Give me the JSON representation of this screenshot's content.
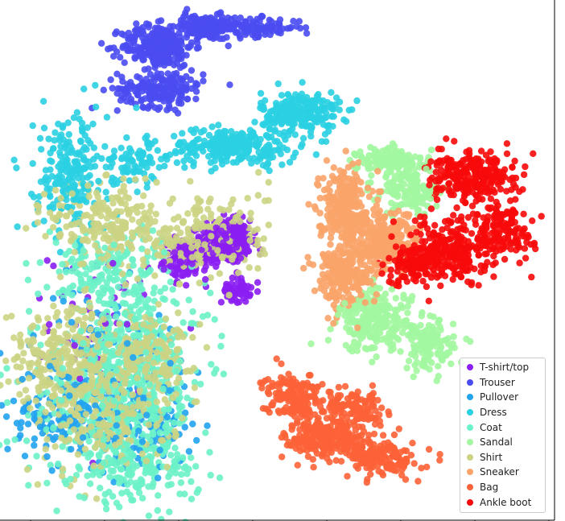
{
  "chart_data": {
    "type": "scatter",
    "title": "",
    "xlabel": "",
    "ylabel": "",
    "grid": false,
    "legend_placement": "lower-right",
    "series": [
      {
        "name": "T-shirt/top",
        "color": "#8b1ef2",
        "clusters": [
          {
            "x": 0.03,
            "y": 0.66,
            "sx": 0.035,
            "sy": 0.035,
            "n": 420
          },
          {
            "x": -0.08,
            "y": 0.6,
            "sx": 0.03,
            "sy": 0.03,
            "n": 120
          },
          {
            "x": 0.06,
            "y": 0.5,
            "sx": 0.02,
            "sy": 0.02,
            "n": 60
          },
          {
            "x": -0.3,
            "y": 0.4,
            "sx": 0.08,
            "sy": 0.12,
            "n": 60
          }
        ]
      },
      {
        "name": "Trouser",
        "color": "#4a4cf2",
        "clusters": [
          {
            "x": -0.03,
            "y": 1.36,
            "sx": 0.05,
            "sy": 0.02,
            "n": 180
          },
          {
            "x": -0.16,
            "y": 1.3,
            "sx": 0.05,
            "sy": 0.035,
            "n": 260
          },
          {
            "x": -0.15,
            "y": 1.16,
            "sx": 0.06,
            "sy": 0.03,
            "n": 200
          },
          {
            "x": 0.12,
            "y": 1.36,
            "sx": 0.06,
            "sy": 0.015,
            "n": 100
          }
        ]
      },
      {
        "name": "Pullover",
        "color": "#22a3f0",
        "clusters": [
          {
            "x": -0.42,
            "y": 0.1,
            "sx": 0.08,
            "sy": 0.08,
            "n": 160
          },
          {
            "x": -0.2,
            "y": 0.06,
            "sx": 0.07,
            "sy": 0.07,
            "n": 130
          },
          {
            "x": -0.3,
            "y": 0.32,
            "sx": 0.1,
            "sy": 0.1,
            "n": 90
          }
        ]
      },
      {
        "name": "Dress",
        "color": "#2ad0e2",
        "clusters": [
          {
            "x": 0.24,
            "y": 1.08,
            "sx": 0.055,
            "sy": 0.035,
            "n": 240
          },
          {
            "x": 0.05,
            "y": 0.97,
            "sx": 0.09,
            "sy": 0.03,
            "n": 240
          },
          {
            "x": -0.4,
            "y": 0.88,
            "sx": 0.05,
            "sy": 0.1,
            "n": 220
          },
          {
            "x": -0.22,
            "y": 0.92,
            "sx": 0.05,
            "sy": 0.04,
            "n": 80
          }
        ]
      },
      {
        "name": "Coat",
        "color": "#6cf2c8",
        "clusters": [
          {
            "x": -0.22,
            "y": 0.3,
            "sx": 0.1,
            "sy": 0.1,
            "n": 260
          },
          {
            "x": -0.28,
            "y": 0.12,
            "sx": 0.12,
            "sy": 0.11,
            "n": 320
          },
          {
            "x": -0.22,
            "y": -0.08,
            "sx": 0.09,
            "sy": 0.06,
            "n": 180
          },
          {
            "x": -0.3,
            "y": 0.56,
            "sx": 0.09,
            "sy": 0.08,
            "n": 180
          }
        ]
      },
      {
        "name": "Sandal",
        "color": "#a2f7a0",
        "clusters": [
          {
            "x": 0.5,
            "y": 0.92,
            "sx": 0.05,
            "sy": 0.025,
            "n": 140
          },
          {
            "x": 0.45,
            "y": 0.4,
            "sx": 0.05,
            "sy": 0.05,
            "n": 240
          },
          {
            "x": 0.6,
            "y": 0.32,
            "sx": 0.035,
            "sy": 0.04,
            "n": 130
          },
          {
            "x": 0.55,
            "y": 0.82,
            "sx": 0.04,
            "sy": 0.035,
            "n": 120
          }
        ]
      },
      {
        "name": "Shirt",
        "color": "#ccd484",
        "clusters": [
          {
            "x": -0.42,
            "y": 0.3,
            "sx": 0.08,
            "sy": 0.08,
            "n": 240
          },
          {
            "x": -0.17,
            "y": 0.3,
            "sx": 0.06,
            "sy": 0.06,
            "n": 140
          },
          {
            "x": -0.32,
            "y": 0.1,
            "sx": 0.1,
            "sy": 0.1,
            "n": 220
          },
          {
            "x": -0.03,
            "y": 0.68,
            "sx": 0.09,
            "sy": 0.08,
            "n": 200
          },
          {
            "x": -0.3,
            "y": 0.72,
            "sx": 0.08,
            "sy": 0.07,
            "n": 200
          }
        ]
      },
      {
        "name": "Sneaker",
        "color": "#f9a46a",
        "clusters": [
          {
            "x": 0.36,
            "y": 0.78,
            "sx": 0.035,
            "sy": 0.06,
            "n": 260
          },
          {
            "x": 0.36,
            "y": 0.55,
            "sx": 0.04,
            "sy": 0.05,
            "n": 220
          },
          {
            "x": 0.47,
            "y": 0.66,
            "sx": 0.05,
            "sy": 0.05,
            "n": 240
          }
        ]
      },
      {
        "name": "Bag",
        "color": "#fd6237",
        "clusters": [
          {
            "x": 0.32,
            "y": 0.02,
            "sx": 0.06,
            "sy": 0.035,
            "n": 260
          },
          {
            "x": 0.47,
            "y": -0.05,
            "sx": 0.05,
            "sy": 0.03,
            "n": 160
          },
          {
            "x": 0.22,
            "y": 0.16,
            "sx": 0.04,
            "sy": 0.035,
            "n": 160
          },
          {
            "x": 0.38,
            "y": 0.12,
            "sx": 0.05,
            "sy": 0.025,
            "n": 120
          }
        ]
      },
      {
        "name": "Ankle boot",
        "color": "#f70a0a",
        "clusters": [
          {
            "x": 0.72,
            "y": 0.87,
            "sx": 0.06,
            "sy": 0.04,
            "n": 260
          },
          {
            "x": 0.65,
            "y": 0.63,
            "sx": 0.055,
            "sy": 0.05,
            "n": 260
          },
          {
            "x": 0.8,
            "y": 0.7,
            "sx": 0.045,
            "sy": 0.05,
            "n": 160
          },
          {
            "x": 0.55,
            "y": 0.58,
            "sx": 0.035,
            "sy": 0.03,
            "n": 80
          }
        ]
      }
    ],
    "xlim": [
      -0.6,
      0.95
    ],
    "ylim": [
      -0.25,
      1.45
    ]
  }
}
